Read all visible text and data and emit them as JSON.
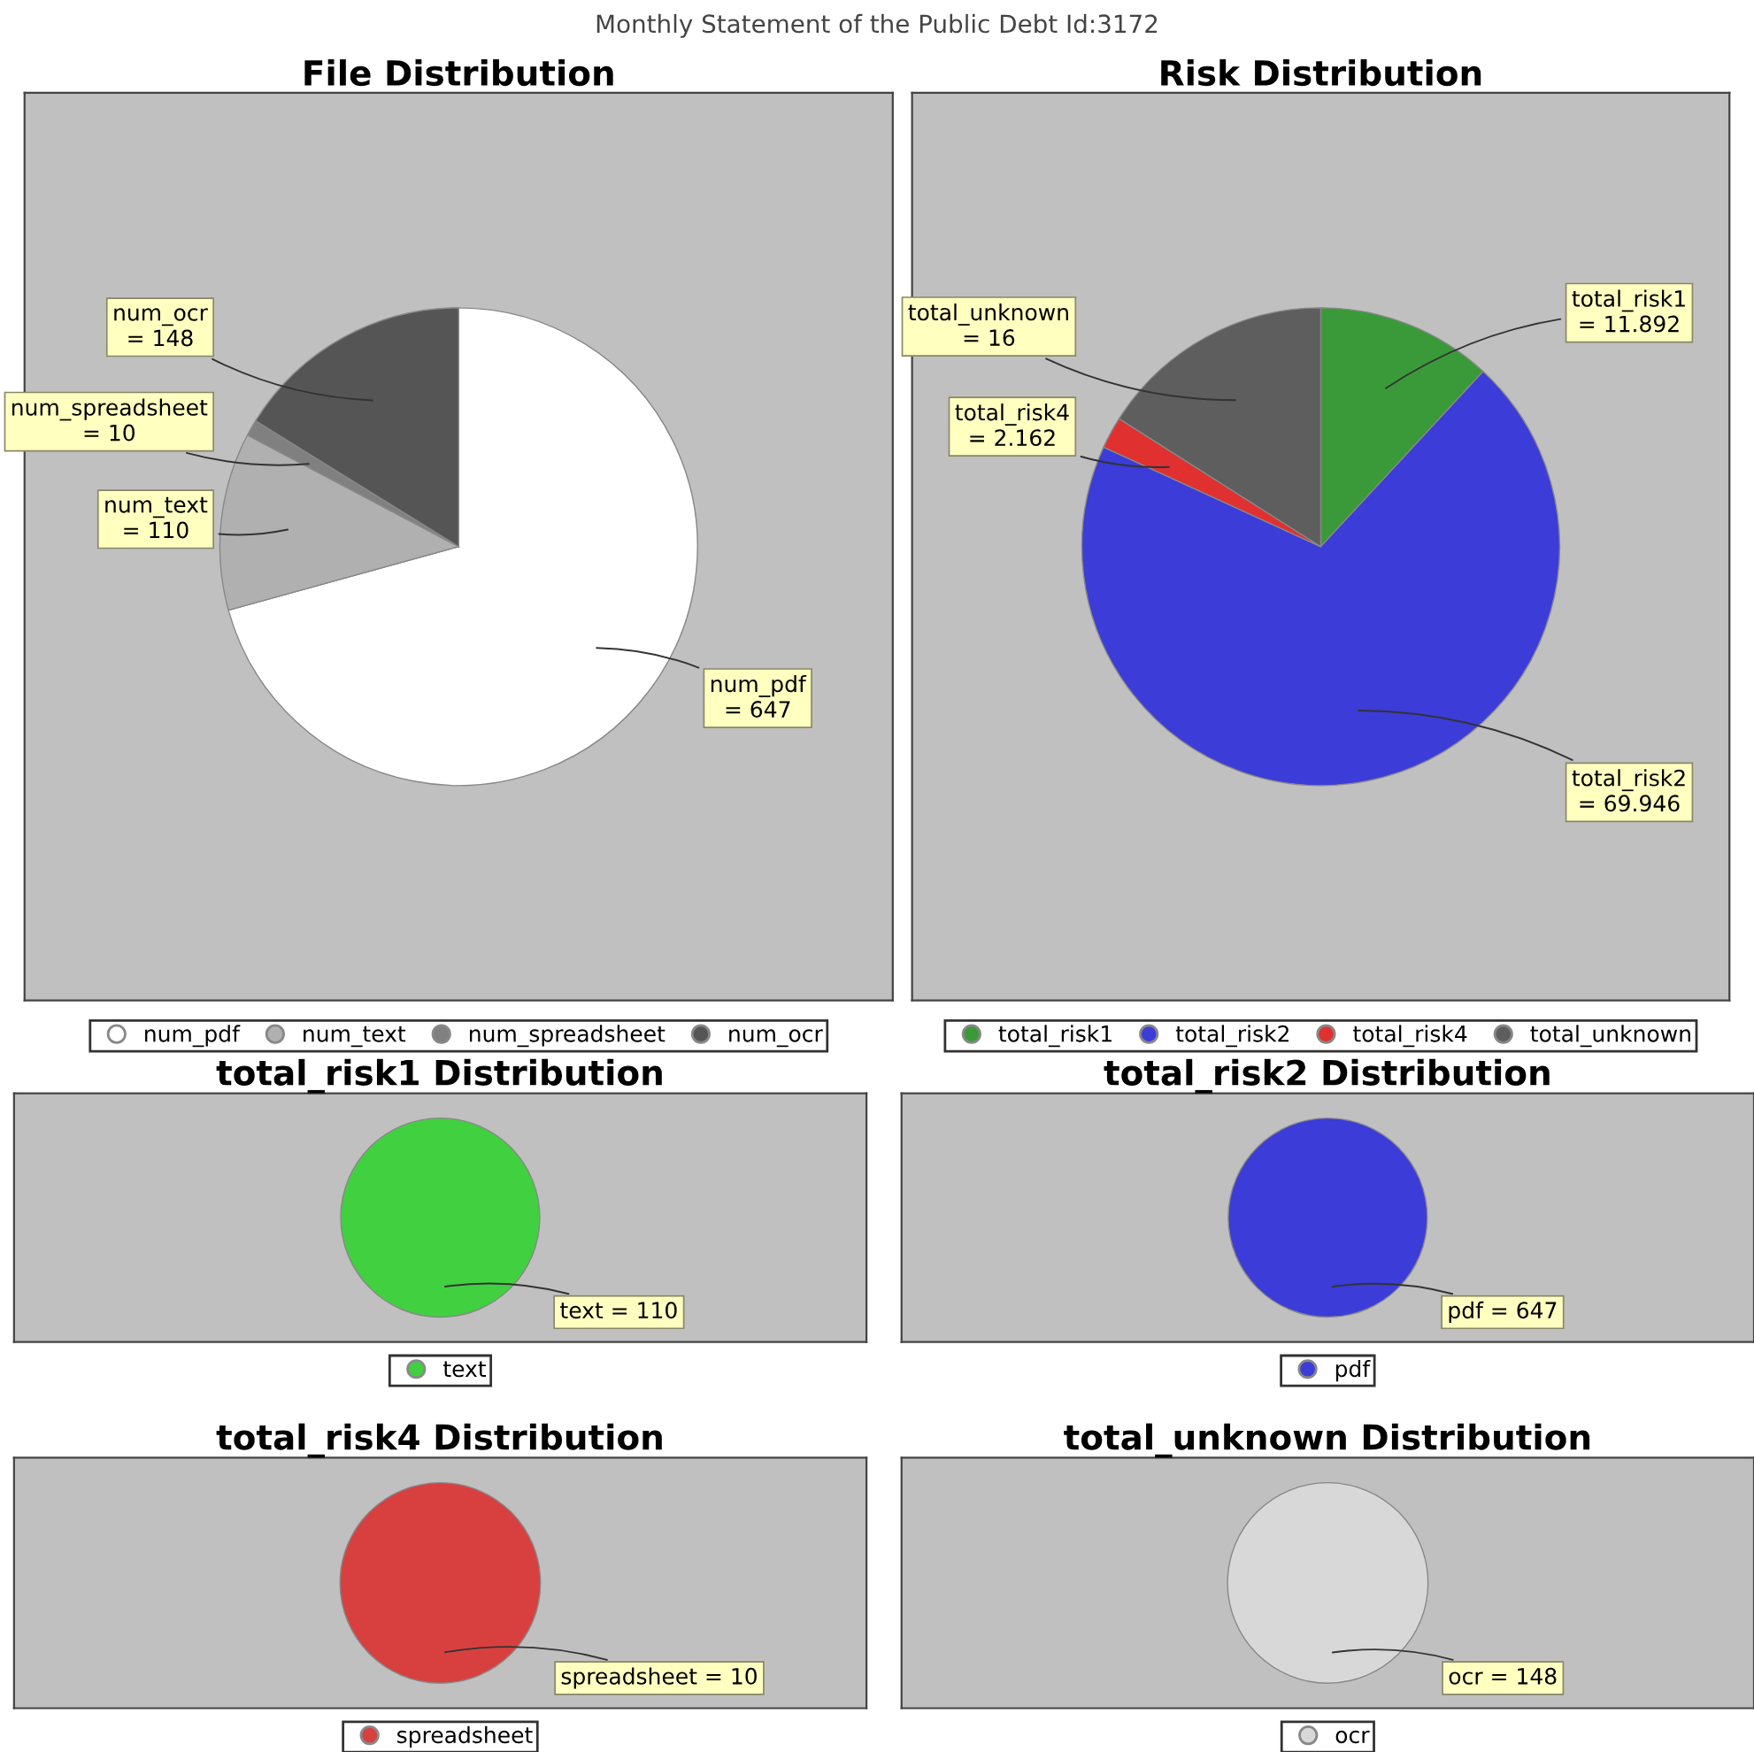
{
  "chart_data": [
    {
      "type": "pie",
      "title": "File Distribution",
      "annotations": [
        "Monthly Statement of the Public Debt Id:3172"
      ],
      "categories": [
        "num_pdf",
        "num_text",
        "num_spreadsheet",
        "num_ocr"
      ],
      "values": [
        647,
        110,
        10,
        148
      ],
      "colors": [
        "#ffffff",
        "#b0b0b0",
        "#808080",
        "#555555"
      ],
      "value_labels": [
        "num_pdf = 647",
        "num_text = 110",
        "num_spreadsheet = 10",
        "num_ocr = 148"
      ],
      "legend": "bottom"
    },
    {
      "type": "pie",
      "title": "Risk Distribution",
      "categories": [
        "total_risk1",
        "total_risk2",
        "total_risk4",
        "total_unknown"
      ],
      "values": [
        11.892,
        69.946,
        2.162,
        16
      ],
      "colors": [
        "#3a9a3a",
        "#3c3cd8",
        "#e03030",
        "#5e5e5e"
      ],
      "value_labels": [
        "total_risk1 = 11.892",
        "total_risk2 = 69.946",
        "total_risk4 = 2.162",
        "total_unknown = 16"
      ],
      "legend": "bottom"
    },
    {
      "type": "pie",
      "title": "total_risk1 Distribution",
      "categories": [
        "text"
      ],
      "values": [
        110
      ],
      "colors": [
        "#40d040"
      ],
      "value_labels": [
        "text = 110"
      ],
      "legend": "bottom"
    },
    {
      "type": "pie",
      "title": "total_risk2 Distribution",
      "categories": [
        "pdf"
      ],
      "values": [
        647
      ],
      "colors": [
        "#3c3cd8"
      ],
      "value_labels": [
        "pdf = 647"
      ],
      "legend": "bottom"
    },
    {
      "type": "pie",
      "title": "total_risk4 Distribution",
      "categories": [
        "spreadsheet"
      ],
      "values": [
        10
      ],
      "colors": [
        "#d84040"
      ],
      "value_labels": [
        "spreadsheet = 10"
      ],
      "legend": "bottom"
    },
    {
      "type": "pie",
      "title": "total_unknown Distribution",
      "categories": [
        "ocr"
      ],
      "values": [
        148
      ],
      "colors": [
        "#d8d8d8"
      ],
      "value_labels": [
        "ocr = 148"
      ],
      "legend": "bottom"
    }
  ]
}
